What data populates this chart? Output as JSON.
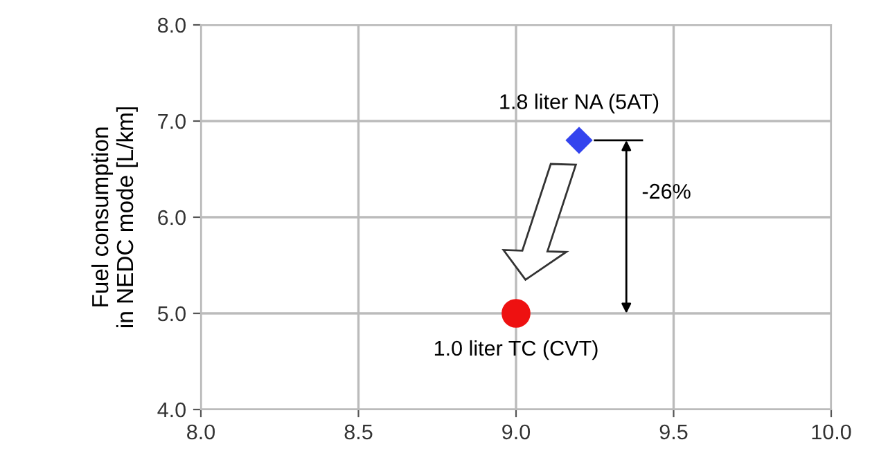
{
  "chart_data": {
    "type": "scatter",
    "ylabel": "Fuel consumption\nin NEDC mode [L/km]",
    "series": [
      {
        "marker": "diamond",
        "color": "#3344ee",
        "x": [
          9.2
        ],
        "values": [
          6.8
        ]
      },
      {
        "marker": "circle",
        "color": "#ee1111",
        "x": [
          9.0
        ],
        "values": [
          5.0
        ]
      }
    ],
    "annotations": [
      {
        "text": "1.8 liter NA (5AT)",
        "x": 9.2,
        "y": 6.8
      },
      {
        "text": "1.0 liter TC (CVT)",
        "x": 9.0,
        "y": 5.0
      },
      "-26%"
    ],
    "xlim": [
      8.0,
      10.0
    ],
    "ylim": [
      4.0,
      8.0
    ],
    "xticks": [
      {
        "value": 8.0,
        "label": "8.0"
      },
      {
        "value": 8.5,
        "label": "8.5"
      },
      {
        "value": 9.0,
        "label": "9.0"
      },
      {
        "value": 9.5,
        "label": "9.5"
      },
      {
        "value": 10.0,
        "label": "10.0"
      }
    ],
    "yticks": [
      {
        "value": 4.0,
        "label": "4.0"
      },
      {
        "value": 5.0,
        "label": "5.0"
      },
      {
        "value": 6.0,
        "label": "6.0"
      },
      {
        "value": 7.0,
        "label": "7.0"
      },
      {
        "value": 8.0,
        "label": "8.0"
      }
    ],
    "grid": true,
    "legend": false
  }
}
